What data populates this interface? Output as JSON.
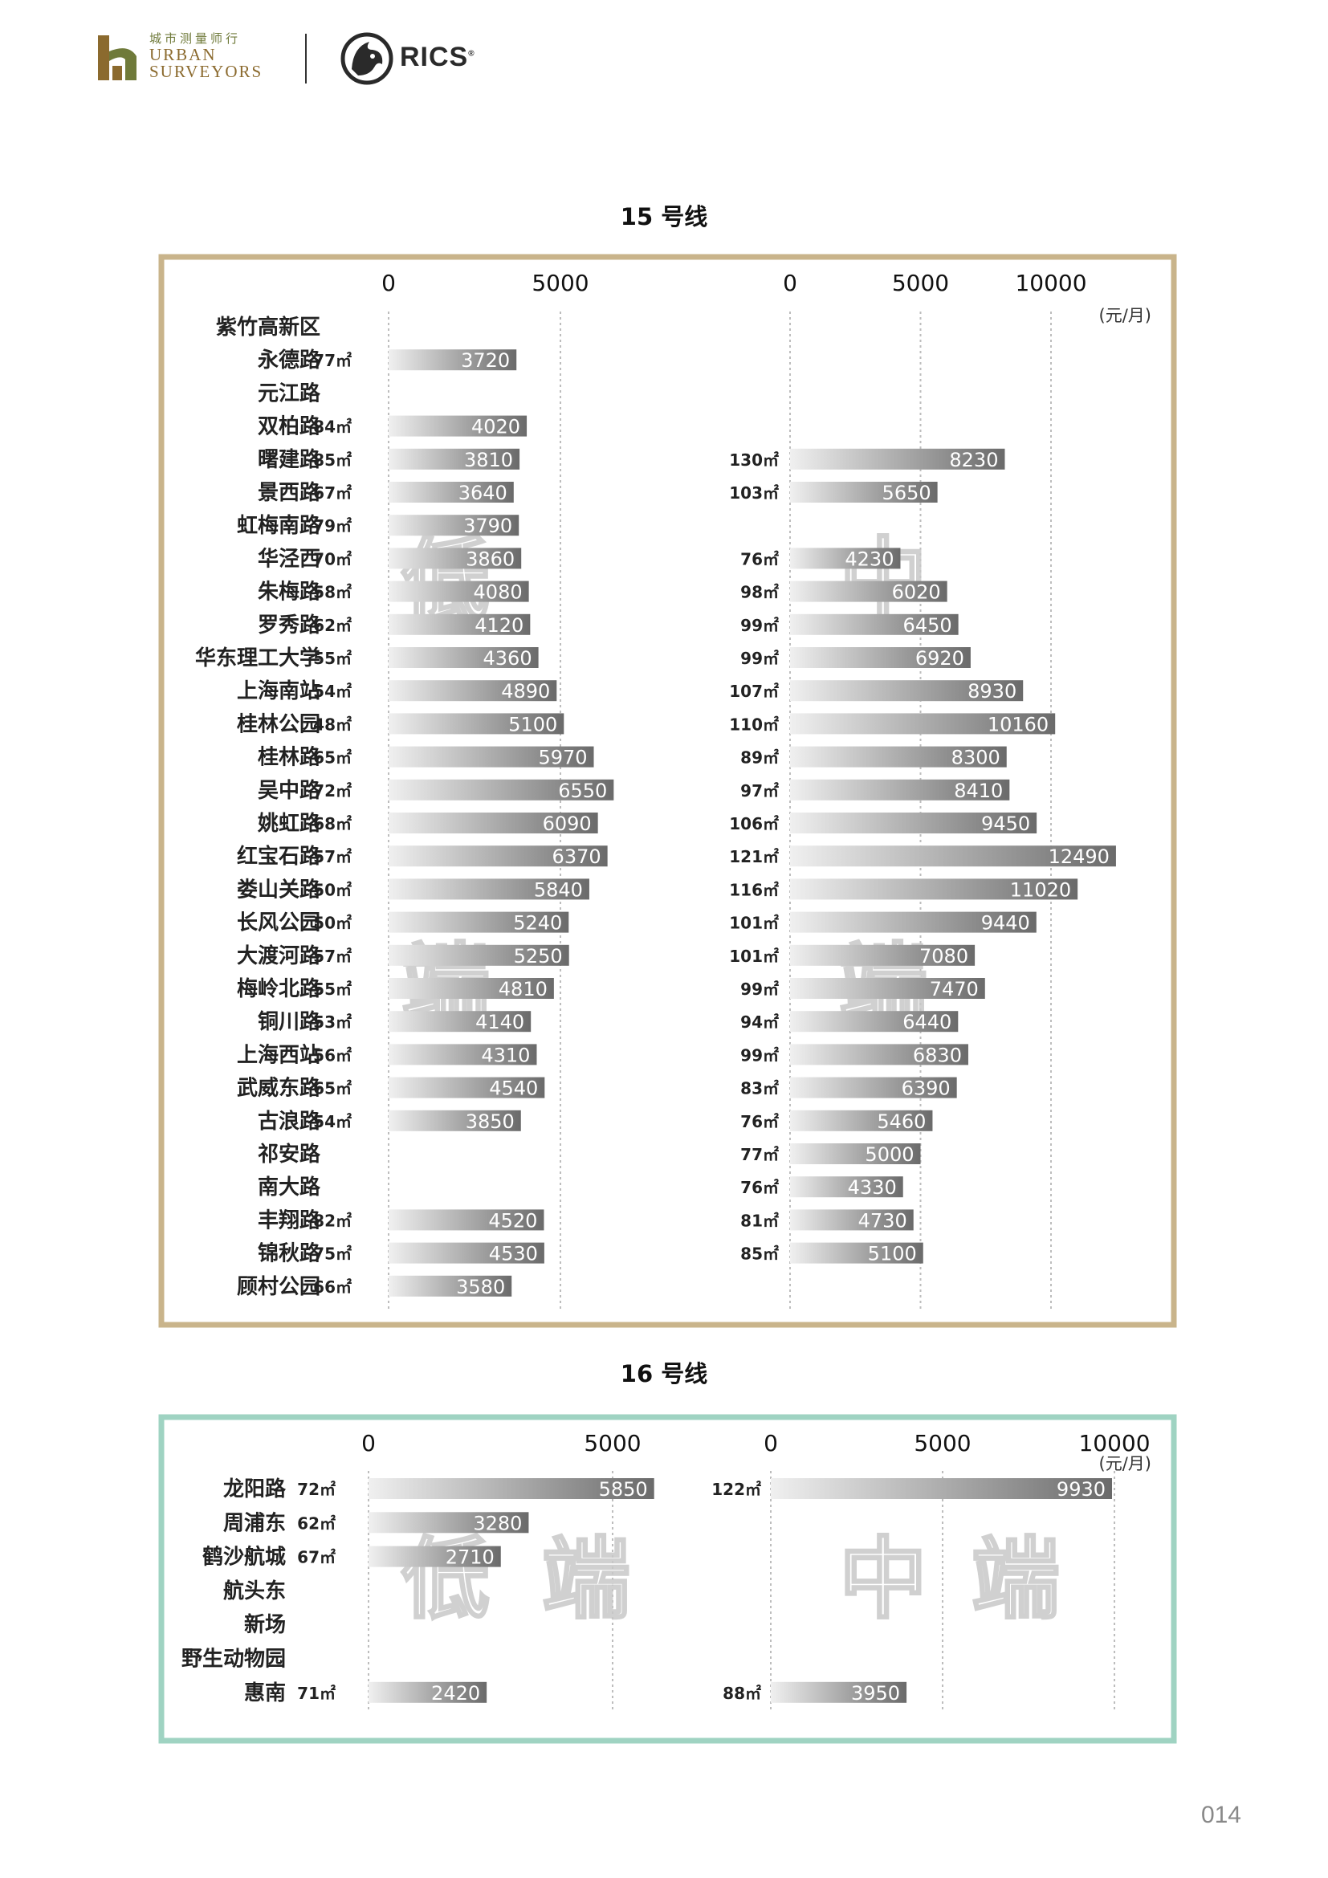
{
  "header": {
    "logo_cn": "城市测量师行",
    "logo_en_line1": "URBAN",
    "logo_en_line2": "SURVEYORS",
    "rics": "RICS",
    "rics_mark": "®"
  },
  "page_number": "014",
  "colors": {
    "frame15": "#c9b48b",
    "frame16": "#9fd3c2",
    "bar_light": "#f0f0f0",
    "bar_dark": "#6a6a6a",
    "grid": "#bdbdbd"
  },
  "chart_data": [
    {
      "type": "bar",
      "title": "15 号线",
      "unit": "(元/月)",
      "left_ticks": [
        "0",
        "5000"
      ],
      "right_ticks": [
        "0",
        "5000",
        "10000"
      ],
      "left_xlim": [
        0,
        5000
      ],
      "right_xlim": [
        0,
        10000
      ],
      "grid": true,
      "categories": [
        "紫竹高新区",
        "永德路",
        "元江路",
        "双柏路",
        "曙建路",
        "景西路",
        "虹梅南路",
        "华泾西",
        "朱梅路",
        "罗秀路",
        "华东理工大学",
        "上海南站",
        "桂林公园",
        "桂林路",
        "吴中路",
        "姚虹路",
        "红宝石路",
        "娄山关路",
        "长风公园",
        "大渡河路",
        "梅岭北路",
        "铜川路",
        "上海西站",
        "武威东路",
        "古浪路",
        "祁安路",
        "南大路",
        "丰翔路",
        "锦秋路",
        "顾村公园"
      ],
      "series": [
        {
          "values": [
            null,
            3720,
            null,
            4020,
            3810,
            3640,
            3790,
            3860,
            4080,
            4120,
            4360,
            4890,
            5100,
            5970,
            6550,
            6090,
            6370,
            5840,
            5240,
            5250,
            4810,
            4140,
            4310,
            4540,
            3850,
            null,
            null,
            4520,
            4530,
            3580
          ],
          "area_labels": [
            "",
            "77㎡",
            "",
            "84㎡",
            "85㎡",
            "67㎡",
            "79㎡",
            "70㎡",
            "58㎡",
            "62㎡",
            "55㎡",
            "54㎡",
            "48㎡",
            "65㎡",
            "72㎡",
            "68㎡",
            "57㎡",
            "50㎡",
            "50㎡",
            "57㎡",
            "55㎡",
            "53㎡",
            "56㎡",
            "65㎡",
            "54㎡",
            "",
            "",
            "82㎡",
            "75㎡",
            "66㎡"
          ]
        },
        {
          "values": [
            null,
            null,
            null,
            null,
            8230,
            5650,
            null,
            4230,
            6020,
            6450,
            6920,
            8930,
            10160,
            8300,
            8410,
            9450,
            12490,
            11020,
            9440,
            7080,
            7470,
            6440,
            6830,
            6390,
            5460,
            5000,
            4330,
            4730,
            5100,
            null
          ],
          "area_labels": [
            "",
            "",
            "",
            "",
            "130㎡",
            "103㎡",
            "",
            "76㎡",
            "98㎡",
            "99㎡",
            "99㎡",
            "107㎡",
            "110㎡",
            "89㎡",
            "97㎡",
            "106㎡",
            "121㎡",
            "116㎡",
            "101㎡",
            "101㎡",
            "99㎡",
            "94㎡",
            "99㎡",
            "83㎡",
            "76㎡",
            "77㎡",
            "76㎡",
            "81㎡",
            "85㎡",
            ""
          ]
        }
      ],
      "watermarks": [
        "低",
        "端",
        "中",
        "端"
      ]
    },
    {
      "type": "bar",
      "title": "16 号线",
      "unit": "(元/月)",
      "left_ticks": [
        "0",
        "5000"
      ],
      "right_ticks": [
        "0",
        "5000",
        "10000"
      ],
      "left_xlim": [
        0,
        5000
      ],
      "right_xlim": [
        0,
        10000
      ],
      "grid": true,
      "categories": [
        "龙阳路",
        "周浦东",
        "鹤沙航城",
        "航头东",
        "新场",
        "野生动物园",
        "惠南"
      ],
      "series": [
        {
          "values": [
            5850,
            3280,
            2710,
            null,
            null,
            null,
            2420
          ],
          "area_labels": [
            "72㎡",
            "62㎡",
            "67㎡",
            "",
            "",
            "",
            "71㎡"
          ]
        },
        {
          "values": [
            9930,
            null,
            null,
            null,
            null,
            null,
            3950
          ],
          "area_labels": [
            "122㎡",
            "",
            "",
            "",
            "",
            "",
            "88㎡"
          ]
        }
      ],
      "watermarks": [
        "低",
        "端",
        "中",
        "端"
      ]
    }
  ]
}
